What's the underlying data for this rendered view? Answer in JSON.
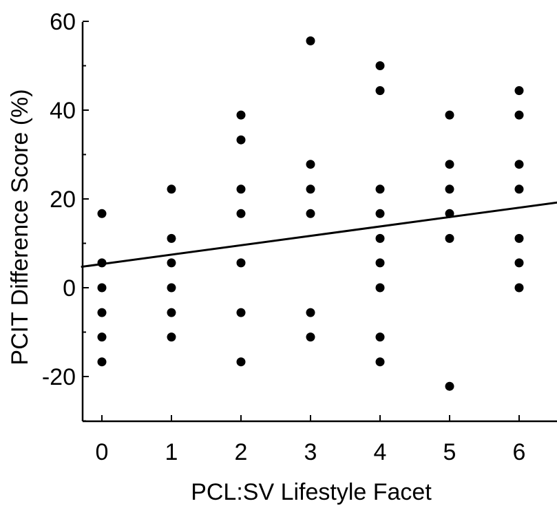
{
  "chart_data": {
    "type": "scatter",
    "xlabel": "PCL:SV Lifestyle Facet",
    "ylabel": "PCIT Difference Score (%)",
    "xlim": [
      -0.3,
      6.6
    ],
    "ylim": [
      -30,
      60
    ],
    "x_ticks": [
      0,
      1,
      2,
      3,
      4,
      5,
      6
    ],
    "y_ticks": [
      -20,
      0,
      20,
      40,
      60
    ],
    "grid": false,
    "points": [
      {
        "x": 0,
        "y": 16.7
      },
      {
        "x": 0,
        "y": 5.6
      },
      {
        "x": 0,
        "y": 0
      },
      {
        "x": 0,
        "y": -5.6
      },
      {
        "x": 0,
        "y": -11.1
      },
      {
        "x": 0,
        "y": -16.7
      },
      {
        "x": 1,
        "y": 22.2
      },
      {
        "x": 1,
        "y": 11.1
      },
      {
        "x": 1,
        "y": 5.6
      },
      {
        "x": 1,
        "y": 0
      },
      {
        "x": 1,
        "y": -5.6
      },
      {
        "x": 1,
        "y": -11.1
      },
      {
        "x": 2,
        "y": 38.9
      },
      {
        "x": 2,
        "y": 33.3
      },
      {
        "x": 2,
        "y": 22.2
      },
      {
        "x": 2,
        "y": 16.7
      },
      {
        "x": 2,
        "y": 5.6
      },
      {
        "x": 2,
        "y": -5.6
      },
      {
        "x": 2,
        "y": -16.7
      },
      {
        "x": 3,
        "y": 55.6
      },
      {
        "x": 3,
        "y": 27.8
      },
      {
        "x": 3,
        "y": 22.2
      },
      {
        "x": 3,
        "y": 16.7
      },
      {
        "x": 3,
        "y": -5.6
      },
      {
        "x": 3,
        "y": -11.1
      },
      {
        "x": 4,
        "y": 50.0
      },
      {
        "x": 4,
        "y": 44.4
      },
      {
        "x": 4,
        "y": 22.2
      },
      {
        "x": 4,
        "y": 16.7
      },
      {
        "x": 4,
        "y": 11.1
      },
      {
        "x": 4,
        "y": 5.6
      },
      {
        "x": 4,
        "y": 0
      },
      {
        "x": 4,
        "y": -11.1
      },
      {
        "x": 4,
        "y": -16.7
      },
      {
        "x": 5,
        "y": 38.9
      },
      {
        "x": 5,
        "y": 27.8
      },
      {
        "x": 5,
        "y": 22.2
      },
      {
        "x": 5,
        "y": 16.7
      },
      {
        "x": 5,
        "y": 11.1
      },
      {
        "x": 5,
        "y": -22.2
      },
      {
        "x": 6,
        "y": 44.4
      },
      {
        "x": 6,
        "y": 38.9
      },
      {
        "x": 6,
        "y": 27.8
      },
      {
        "x": 6,
        "y": 22.2
      },
      {
        "x": 6,
        "y": 11.1
      },
      {
        "x": 6,
        "y": 5.6
      },
      {
        "x": 6,
        "y": 0
      }
    ],
    "fit_line": {
      "x": [
        -0.3,
        6.6
      ],
      "y": [
        4.7,
        19.3
      ]
    },
    "colors": {
      "points": "#000000",
      "line": "#000000",
      "axes": "#000000"
    }
  }
}
